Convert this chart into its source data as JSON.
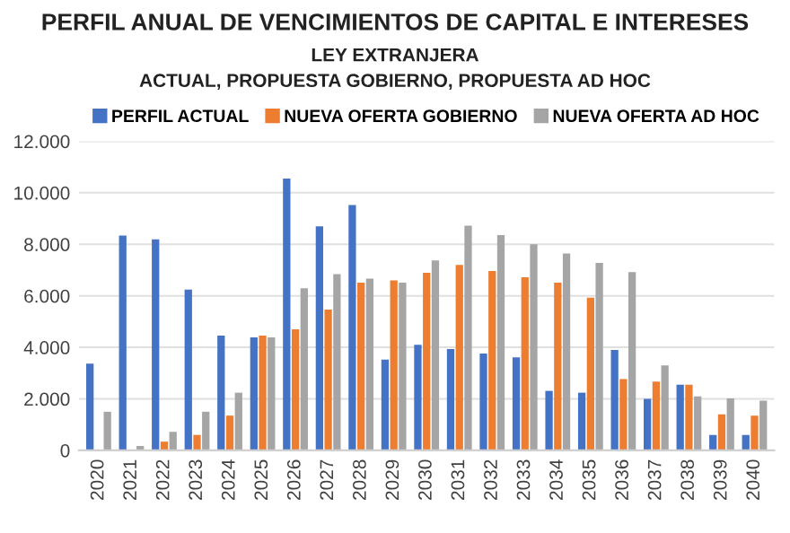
{
  "chart_data": {
    "type": "bar",
    "title": "PERFIL ANUAL DE VENCIMIENTOS DE CAPITAL E INTERESES",
    "subtitle": "LEY EXTRANJERA\nACTUAL, PROPUESTA GOBIERNO, PROPUESTA AD HOC",
    "categories": [
      "2020",
      "2021",
      "2022",
      "2023",
      "2024",
      "2025",
      "2026",
      "2027",
      "2028",
      "2029",
      "2030",
      "2031",
      "2032",
      "2033",
      "2034",
      "2035",
      "2036",
      "2037",
      "2038",
      "2039",
      "2040"
    ],
    "series": [
      {
        "name": "PERFIL ACTUAL",
        "color": "#4472c4",
        "values": [
          3370,
          8340,
          8190,
          6240,
          4460,
          4390,
          10550,
          8700,
          9520,
          3520,
          4100,
          3930,
          3760,
          3610,
          2310,
          2240,
          3900,
          2000,
          2550,
          600,
          600
        ]
      },
      {
        "name": "NUEVA OFERTA GOBIERNO",
        "color": "#ed7d31",
        "values": [
          0,
          0,
          340,
          600,
          1350,
          4460,
          4700,
          5470,
          6510,
          6600,
          6890,
          7200,
          6960,
          6720,
          6510,
          5930,
          2770,
          2670,
          2550,
          1400,
          1350
        ]
      },
      {
        "name": "NUEVA OFERTA AD HOC",
        "color": "#a5a5a5",
        "values": [
          1500,
          170,
          720,
          1500,
          2240,
          4390,
          6290,
          6840,
          6670,
          6510,
          7370,
          8720,
          8360,
          8000,
          7640,
          7280,
          6920,
          3300,
          2100,
          2020,
          1930
        ]
      }
    ],
    "ylim": [
      0,
      12000
    ],
    "yticks": [
      0,
      {
        "value": 2000,
        "label": "2.000"
      },
      {
        "value": 4000,
        "label": "4.000"
      },
      {
        "value": 6000,
        "label": "6.000"
      },
      {
        "value": 8000,
        "label": "8.000"
      },
      {
        "value": 10000,
        "label": "10.000"
      },
      {
        "value": 12000,
        "label": "12.000"
      }
    ],
    "grid": "y",
    "legend": "top"
  }
}
